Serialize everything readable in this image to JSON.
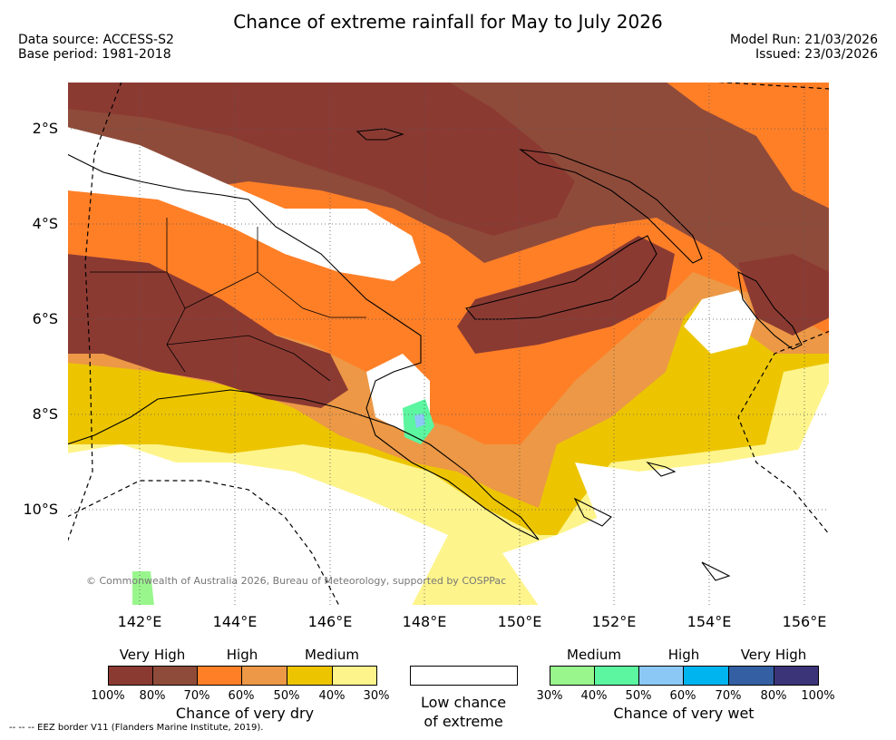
{
  "header": {
    "title": "Chance of extreme rainfall for May to July 2026",
    "data_source": "Data source: ACCESS-S2",
    "base_period": "Base period: 1981-2018",
    "model_run": "Model Run: 21/03/2026",
    "issued": "Issued: 23/03/2026"
  },
  "map": {
    "copyright": "© Commonwealth of Australia 2026, Bureau of Meteorology, supported by COSPPac",
    "lat_labels": [
      "2°S",
      "4°S",
      "6°S",
      "8°S",
      "10°S"
    ],
    "lon_labels": [
      "142°E",
      "144°E",
      "146°E",
      "148°E",
      "150°E",
      "152°E",
      "154°E",
      "156°E"
    ],
    "colors": {
      "very_high_dry_1": "#8b3a32",
      "very_high_dry_2": "#8f4b3a",
      "high_dry_1": "#ff7f27",
      "high_dry_2": "#ec9846",
      "medium_dry_1": "#ecc500",
      "medium_dry_2": "#fef48c",
      "medium_wet_1": "#99f68c",
      "medium_wet_2": "#5cf5a0",
      "high_wet_1": "#8cc8f5",
      "high_wet_2": "#00b4f0",
      "very_high_wet_1": "#3460a3",
      "very_high_wet_2": "#3c3478",
      "land_outline": "#000000"
    }
  },
  "legend": {
    "dry": {
      "categories": [
        "Very High",
        "High",
        "Medium"
      ],
      "percents": [
        "100%",
        "80%",
        "70%",
        "60%",
        "50%",
        "40%",
        "30%"
      ],
      "title": "Chance of very dry"
    },
    "low": {
      "line1": "Low chance",
      "line2": "of extreme"
    },
    "wet": {
      "categories": [
        "Medium",
        "High",
        "Very High"
      ],
      "percents": [
        "30%",
        "40%",
        "50%",
        "60%",
        "70%",
        "80%",
        "100%"
      ],
      "title": "Chance of very wet"
    }
  },
  "footer": {
    "eez": "--  --  -- EEZ border V11 (Flanders Marine Institute, 2019)."
  }
}
